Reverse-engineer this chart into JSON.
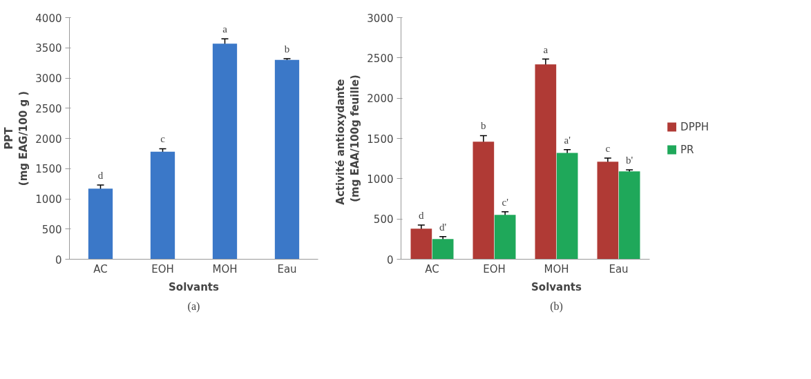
{
  "chart_data": [
    {
      "type": "bar",
      "categories": [
        "AC",
        "EOH",
        "MOH",
        "Eau"
      ],
      "xlabel": "Solvants",
      "ylabel": "PPT\n(mg EAG/100 g )",
      "series": [
        {
          "color": "#3b78c8",
          "values": [
            1170,
            1780,
            3570,
            3300
          ],
          "errors": [
            60,
            50,
            80,
            20
          ],
          "value_labels": [
            "d",
            "c",
            "a",
            "b"
          ]
        }
      ],
      "ylim": [
        0,
        4000
      ],
      "yticks": [
        0,
        500,
        1000,
        1500,
        2000,
        2500,
        3000,
        3500,
        4000
      ],
      "grid": false,
      "legend": false,
      "annotations": [
        "(a)"
      ]
    },
    {
      "type": "bar",
      "categories": [
        "AC",
        "EOH",
        "MOH",
        "Eau"
      ],
      "xlabel": "Solvants",
      "ylabel": "Activité   antioxydante\n(mg EAA/100g feuille)",
      "series": [
        {
          "name": "DPPH",
          "color": "#b03a35",
          "values": [
            380,
            1460,
            2420,
            1210
          ],
          "errors": [
            45,
            75,
            65,
            45
          ],
          "value_labels": [
            "d",
            "b",
            "a",
            "c"
          ]
        },
        {
          "name": "PR",
          "color": "#1fa85a",
          "values": [
            250,
            550,
            1320,
            1090
          ],
          "errors": [
            30,
            40,
            40,
            20
          ],
          "value_labels": [
            "d'",
            "c'",
            "a'",
            "b'"
          ]
        }
      ],
      "ylim": [
        0,
        3000
      ],
      "yticks": [
        0,
        500,
        1000,
        1500,
        2000,
        2500,
        3000
      ],
      "grid": false,
      "legend": "right",
      "annotations": [
        "(b)"
      ]
    }
  ]
}
